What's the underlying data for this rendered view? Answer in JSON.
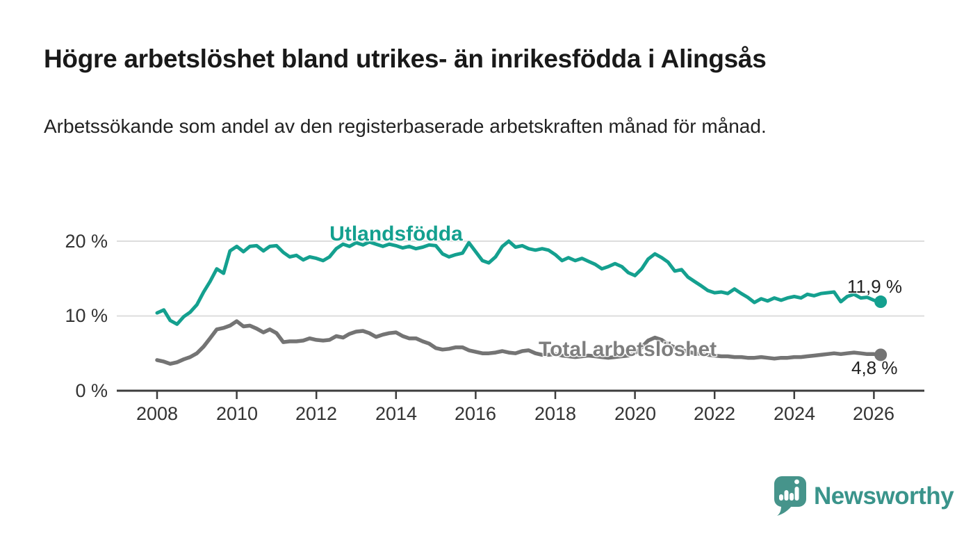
{
  "header": {
    "title": "Högre arbetslöshet bland utrikes- än inrikesfödda i Alingsås",
    "subtitle": "Arbetssökande som andel av den registerbaserade arbetskraften månad för månad."
  },
  "chart_data": {
    "type": "line",
    "title": "Högre arbetslöshet bland utrikes- än inrikesfödda i Alingsås",
    "xlabel": "",
    "ylabel": "",
    "unit": "%",
    "xlim": [
      2007.6,
      2027.3
    ],
    "ylim": [
      0,
      21.5
    ],
    "grid": "horizontal",
    "y_gridline_values": [
      10,
      20
    ],
    "y_tick_labels": [
      "0 %",
      "10 %",
      "20 %"
    ],
    "x_ticks": [
      2008,
      2010,
      2012,
      2014,
      2016,
      2018,
      2020,
      2022,
      2024,
      2026
    ],
    "x_tick_labels": [
      "2008",
      "2010",
      "2012",
      "2014",
      "2016",
      "2018",
      "2020",
      "2022",
      "2024",
      "2026"
    ],
    "x": [
      2008,
      2008.17,
      2008.33,
      2008.5,
      2008.67,
      2008.83,
      2009,
      2009.17,
      2009.33,
      2009.5,
      2009.67,
      2009.83,
      2010,
      2010.17,
      2010.33,
      2010.5,
      2010.67,
      2010.83,
      2011,
      2011.17,
      2011.33,
      2011.5,
      2011.67,
      2011.83,
      2012,
      2012.17,
      2012.33,
      2012.5,
      2012.67,
      2012.83,
      2013,
      2013.17,
      2013.33,
      2013.5,
      2013.67,
      2013.83,
      2014,
      2014.17,
      2014.33,
      2014.5,
      2014.67,
      2014.83,
      2015,
      2015.17,
      2015.33,
      2015.5,
      2015.67,
      2015.83,
      2016,
      2016.17,
      2016.33,
      2016.5,
      2016.67,
      2016.83,
      2017,
      2017.17,
      2017.33,
      2017.5,
      2017.67,
      2017.83,
      2018,
      2018.17,
      2018.33,
      2018.5,
      2018.67,
      2018.83,
      2019,
      2019.17,
      2019.33,
      2019.5,
      2019.67,
      2019.83,
      2020,
      2020.17,
      2020.33,
      2020.5,
      2020.67,
      2020.83,
      2021,
      2021.17,
      2021.33,
      2021.5,
      2021.67,
      2021.83,
      2022,
      2022.17,
      2022.33,
      2022.5,
      2022.67,
      2022.83,
      2023,
      2023.17,
      2023.33,
      2023.5,
      2023.67,
      2023.83,
      2024,
      2024.17,
      2024.33,
      2024.5,
      2024.67,
      2024.83,
      2025,
      2025.17,
      2025.33,
      2025.5,
      2025.67,
      2025.83,
      2026,
      2026.17
    ],
    "series": [
      {
        "name": "Utlandsfödda",
        "color": "#14a08f",
        "end_label": "11,9 %",
        "end_value": 11.9,
        "values": [
          10.4,
          10.8,
          9.4,
          8.9,
          9.9,
          10.5,
          11.5,
          13.2,
          14.6,
          16.3,
          15.7,
          18.7,
          19.3,
          18.6,
          19.3,
          19.4,
          18.7,
          19.3,
          19.4,
          18.5,
          17.9,
          18.1,
          17.5,
          17.9,
          17.7,
          17.4,
          17.9,
          19.0,
          19.6,
          19.3,
          19.8,
          19.5,
          19.9,
          19.6,
          19.3,
          19.6,
          19.4,
          19.1,
          19.3,
          19.0,
          19.2,
          19.5,
          19.4,
          18.3,
          17.9,
          18.2,
          18.4,
          19.8,
          18.6,
          17.4,
          17.1,
          17.9,
          19.3,
          20.0,
          19.2,
          19.4,
          19.0,
          18.8,
          19.0,
          18.8,
          18.2,
          17.4,
          17.8,
          17.4,
          17.7,
          17.3,
          16.9,
          16.3,
          16.6,
          17.0,
          16.6,
          15.8,
          15.4,
          16.3,
          17.6,
          18.3,
          17.8,
          17.2,
          16.0,
          16.2,
          15.2,
          14.6,
          14.0,
          13.4,
          13.1,
          13.2,
          13.0,
          13.6,
          13.0,
          12.5,
          11.8,
          12.3,
          12.0,
          12.4,
          12.1,
          12.4,
          12.6,
          12.4,
          12.9,
          12.7,
          13.0,
          13.1,
          13.2,
          11.9,
          12.6,
          12.9,
          12.4,
          12.5,
          12.1,
          11.9
        ]
      },
      {
        "name": "Total arbetslöshet",
        "color": "#747474",
        "label_color": "#7e7e7e",
        "end_label": "4,8 %",
        "end_value": 4.8,
        "values": [
          4.1,
          3.9,
          3.6,
          3.8,
          4.2,
          4.5,
          5.0,
          5.9,
          7.0,
          8.2,
          8.4,
          8.7,
          9.3,
          8.6,
          8.7,
          8.3,
          7.8,
          8.2,
          7.7,
          6.5,
          6.6,
          6.6,
          6.7,
          7.0,
          6.8,
          6.7,
          6.8,
          7.3,
          7.1,
          7.6,
          7.9,
          8.0,
          7.7,
          7.2,
          7.5,
          7.7,
          7.8,
          7.3,
          7.0,
          7.0,
          6.6,
          6.3,
          5.7,
          5.5,
          5.6,
          5.8,
          5.8,
          5.4,
          5.2,
          5.0,
          5.0,
          5.1,
          5.3,
          5.1,
          5.0,
          5.3,
          5.4,
          5.0,
          4.8,
          4.8,
          4.9,
          4.7,
          4.6,
          4.5,
          4.6,
          4.7,
          4.6,
          4.5,
          4.4,
          4.5,
          4.6,
          4.7,
          5.0,
          5.8,
          6.7,
          7.1,
          6.8,
          6.2,
          5.8,
          5.5,
          5.2,
          5.0,
          4.9,
          4.8,
          4.7,
          4.6,
          4.6,
          4.5,
          4.5,
          4.4,
          4.4,
          4.5,
          4.4,
          4.3,
          4.4,
          4.4,
          4.5,
          4.5,
          4.6,
          4.7,
          4.8,
          4.9,
          5.0,
          4.9,
          5.0,
          5.1,
          5.0,
          4.9,
          4.9,
          4.8
        ]
      }
    ]
  },
  "branding": {
    "logo_text": "Newsworthy",
    "logo_color": "#46948b",
    "logo_text_color": "#3a948b"
  }
}
